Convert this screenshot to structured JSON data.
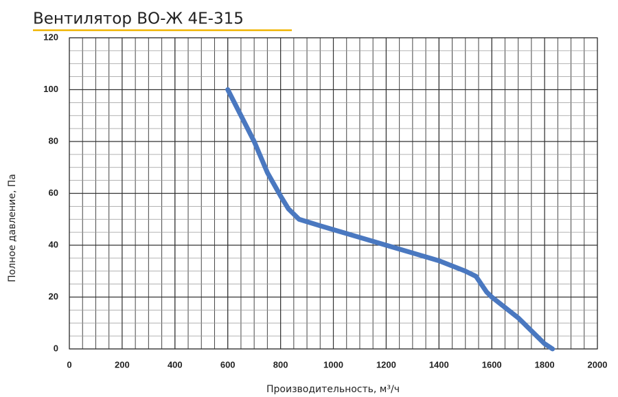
{
  "chart_data": {
    "type": "line",
    "title": "Вентилятор ВО-Ж 4Е-315",
    "x_label": "Производительность, м³/ч",
    "y_label": "Полное давление, Па",
    "x": [
      600,
      650,
      700,
      750,
      800,
      830,
      870,
      950,
      1000,
      1100,
      1200,
      1300,
      1400,
      1500,
      1540,
      1580,
      1600,
      1700,
      1750,
      1800,
      1830
    ],
    "series": [
      {
        "color": "#4a78c0",
        "values": [
          100,
          90,
          80,
          68,
          59,
          54,
          50,
          47.5,
          46,
          43,
          40,
          37,
          34,
          30,
          28,
          22,
          20,
          12,
          7,
          2,
          0
        ]
      }
    ],
    "xlim": [
      0,
      2000
    ],
    "xticks": [
      0,
      200,
      400,
      600,
      800,
      1000,
      1200,
      1400,
      1600,
      1800,
      2000
    ],
    "ylim": [
      0,
      120
    ],
    "yticks": [
      0,
      20,
      40,
      60,
      80,
      100,
      120
    ],
    "grid": true,
    "minor_grid": {
      "x": 50,
      "y": 5
    }
  }
}
